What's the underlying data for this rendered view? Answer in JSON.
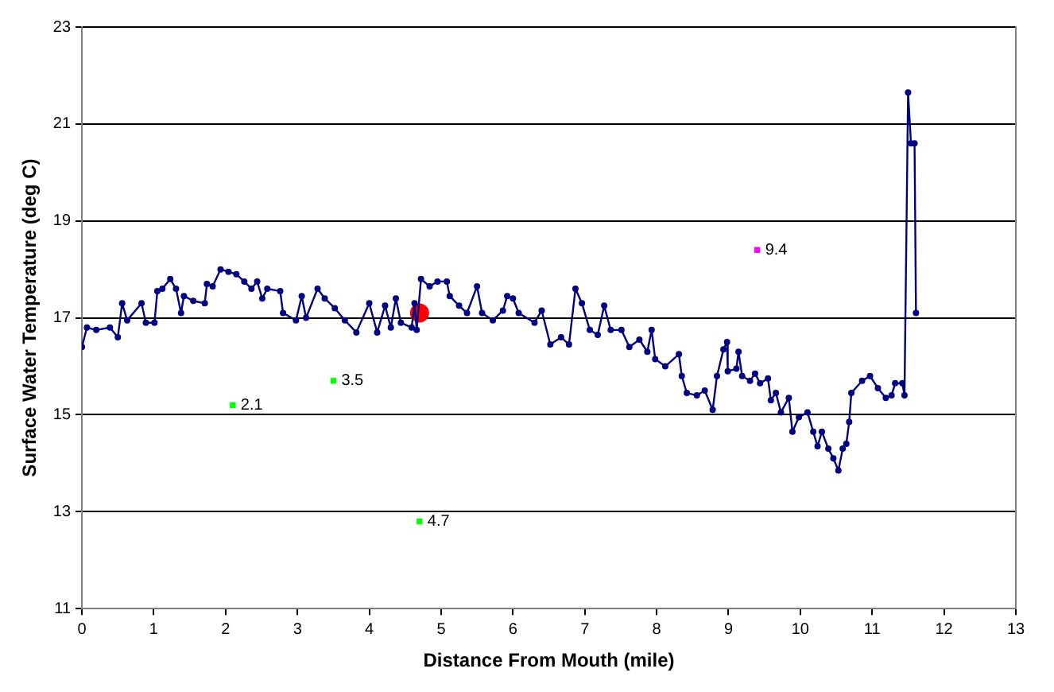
{
  "chart_data": {
    "type": "line",
    "xlabel": "Distance From Mouth (mile)",
    "ylabel": "Surface Water Temperature (deg C)",
    "xlim": [
      0,
      13
    ],
    "xticks": [
      0,
      1,
      2,
      3,
      4,
      5,
      6,
      7,
      8,
      9,
      10,
      11,
      12,
      13
    ],
    "ylim": [
      11,
      23
    ],
    "yticks": [
      11,
      13,
      15,
      17,
      19,
      21,
      23
    ],
    "grid": "y",
    "legend": false,
    "series": [
      {
        "color": "#000080",
        "marker": "circle",
        "line_style": "solid",
        "x": [
          0,
          0.07,
          0.2,
          0.39,
          0.5,
          0.56,
          0.63,
          0.83,
          0.89,
          1.01,
          1.05,
          1.12,
          1.23,
          1.31,
          1.38,
          1.42,
          1.55,
          1.71,
          1.74,
          1.82,
          1.93,
          2.04,
          2.15,
          2.26,
          2.36,
          2.44,
          2.51,
          2.58,
          2.76,
          2.8,
          2.98,
          3.06,
          3.12,
          3.28,
          3.38,
          3.52,
          3.66,
          3.82,
          4.0,
          4.11,
          4.22,
          4.3,
          4.37,
          4.44,
          4.59,
          4.63,
          4.66,
          4.72,
          4.84,
          4.95,
          5.08,
          5.12,
          5.25,
          5.36,
          5.5,
          5.57,
          5.72,
          5.86,
          5.92,
          6.0,
          6.08,
          6.3,
          6.4,
          6.52,
          6.67,
          6.78,
          6.87,
          6.96,
          7.07,
          7.18,
          7.27,
          7.36,
          7.51,
          7.62,
          7.76,
          7.87,
          7.93,
          7.98,
          8.12,
          8.31,
          8.35,
          8.42,
          8.56,
          8.67,
          8.78,
          8.84,
          8.93,
          8.98,
          8.99,
          9.11,
          9.14,
          9.19,
          9.3,
          9.37,
          9.44,
          9.55,
          9.59,
          9.66,
          9.73,
          9.84,
          9.89,
          9.98,
          10.1,
          10.18,
          10.24,
          10.3,
          10.39,
          10.46,
          10.53,
          10.59,
          10.64,
          10.68,
          10.71,
          10.86,
          10.97,
          11.08,
          11.19,
          11.27,
          11.32,
          11.42,
          11.45,
          11.5,
          11.54,
          11.59,
          11.61
        ],
        "values": [
          16.4,
          16.8,
          16.75,
          16.8,
          16.6,
          17.3,
          16.95,
          17.3,
          16.9,
          16.9,
          17.55,
          17.6,
          17.8,
          17.6,
          17.1,
          17.45,
          17.35,
          17.3,
          17.7,
          17.65,
          18.0,
          17.95,
          17.9,
          17.75,
          17.6,
          17.75,
          17.4,
          17.6,
          17.55,
          17.1,
          16.95,
          17.45,
          17.0,
          17.6,
          17.4,
          17.2,
          16.95,
          16.7,
          17.3,
          16.7,
          17.25,
          16.8,
          17.4,
          16.9,
          16.8,
          17.3,
          16.75,
          17.8,
          17.65,
          17.75,
          17.75,
          17.45,
          17.25,
          17.1,
          17.65,
          17.1,
          16.95,
          17.15,
          17.45,
          17.4,
          17.1,
          16.9,
          17.15,
          16.45,
          16.6,
          16.45,
          17.6,
          17.3,
          16.75,
          16.65,
          17.25,
          16.75,
          16.75,
          16.4,
          16.55,
          16.3,
          16.75,
          16.15,
          16.0,
          16.25,
          15.8,
          15.45,
          15.4,
          15.5,
          15.1,
          15.8,
          16.35,
          16.5,
          15.9,
          15.95,
          16.3,
          15.8,
          15.7,
          15.85,
          15.65,
          15.75,
          15.3,
          15.45,
          15.05,
          15.35,
          14.65,
          14.95,
          15.05,
          14.65,
          14.35,
          14.65,
          14.3,
          14.1,
          13.85,
          14.3,
          14.4,
          14.85,
          15.45,
          15.7,
          15.8,
          15.55,
          15.35,
          15.4,
          15.65,
          15.65,
          15.4,
          21.65,
          20.6,
          20.6,
          17.1
        ]
      },
      {
        "type": "scatter",
        "color": "#ff0000",
        "marker": "circle",
        "x": [
          4.7
        ],
        "values": [
          17.1
        ]
      },
      {
        "type": "scatter",
        "color": "#00ff00",
        "marker": "square",
        "x": [
          2.1,
          3.5,
          4.7
        ],
        "values": [
          15.2,
          15.7,
          12.8
        ]
      },
      {
        "type": "scatter",
        "color": "#ff00ff",
        "marker": "square",
        "x": [
          9.4
        ],
        "values": [
          18.4
        ]
      }
    ],
    "annotations": [
      {
        "text": "2.1",
        "x": 2.1,
        "y": 15.2
      },
      {
        "text": "3.5",
        "x": 3.5,
        "y": 15.7
      },
      {
        "text": "4.7",
        "x": 4.7,
        "y": 12.8
      },
      {
        "text": "9.4",
        "x": 9.4,
        "y": 18.4
      }
    ]
  }
}
